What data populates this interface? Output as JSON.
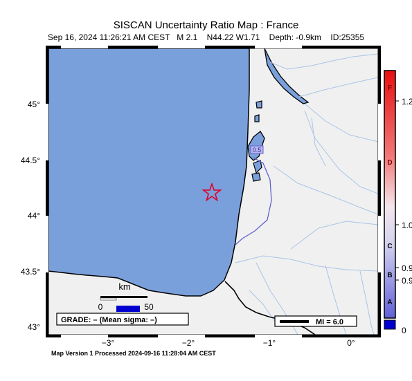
{
  "title": "SISCAN Uncertainty Ratio Map : France",
  "subtitle": "Sep 16, 2024 11:26:21 AM CEST   M 2.1    N44.22 W1.71    Depth: -0.9km    ID:25355",
  "footer": "Map Version 1 Processed 2024-09-16 11:28:04 AM CEST",
  "lat_ticks": [
    "45°",
    "44.5°",
    "44°",
    "43.5°",
    "43°"
  ],
  "lon_ticks": [
    "−3°",
    "−2°",
    "−1°",
    "0°"
  ],
  "scale": {
    "unit": "km",
    "zero": "0",
    "max": "50"
  },
  "grade_text": "GRADE: – (Mean sigma: –)",
  "legend_mi": "MI = 6.0",
  "contour_label": "0.5",
  "colorbar": {
    "letters": [
      "F",
      "D",
      "C",
      "B",
      "A"
    ],
    "values": [
      "1.2",
      "1.0",
      "0.9",
      "0.9",
      "0"
    ]
  },
  "colors": {
    "ocean": "#7aa0dc",
    "land": "#f0f0f0",
    "river": "#a9c4e8",
    "epicenter": "#e0002a"
  },
  "epicenter": {
    "lat": 44.22,
    "lon": -1.71,
    "magnitude": 2.1
  }
}
